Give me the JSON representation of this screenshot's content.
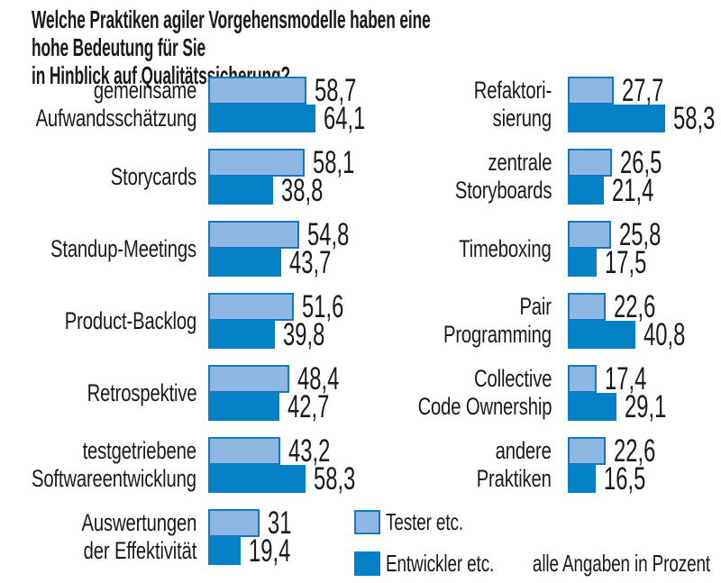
{
  "title": "Welche Praktiken agiler Vorgehensmodelle haben eine hohe Bedeutung für Sie\nin Hinblick auf Qualitätssicherung?",
  "legend": {
    "tester_label": "Tester etc.",
    "entwickler_label": "Entwickler etc."
  },
  "footnote": "alle Angaben in Prozent",
  "colors": {
    "tester_fill": "#8fb7e3",
    "tester_border": "#1478be",
    "entwickler_fill": "#0481c6",
    "text": "#1a1a1a"
  },
  "chart_data": {
    "type": "bar",
    "orientation": "horizontal",
    "unit": "percent",
    "title": "Welche Praktiken agiler Vorgehensmodelle haben eine hohe Bedeutung für Sie in Hinblick auf Qualitätssicherung?",
    "series_names": [
      "Tester etc.",
      "Entwickler etc."
    ],
    "xlim": [
      0,
      70
    ],
    "grid": false,
    "legend_position": "bottom",
    "columns": [
      {
        "rows": [
          {
            "label": "gemeinsame Aufwandsschätzung",
            "label_lines": [
              "gemeinsame",
              "Aufwandsschätzung"
            ],
            "tester": 58.7,
            "entwickler": 64.1,
            "tester_display": "58,7",
            "entwickler_display": "64,1"
          },
          {
            "label": "Storycards",
            "label_lines": [
              "Storycards"
            ],
            "tester": 58.1,
            "entwickler": 38.8,
            "tester_display": "58,1",
            "entwickler_display": "38,8"
          },
          {
            "label": "Standup-Meetings",
            "label_lines": [
              "Standup-Meetings"
            ],
            "tester": 54.8,
            "entwickler": 43.7,
            "tester_display": "54,8",
            "entwickler_display": "43,7"
          },
          {
            "label": "Product-Backlog",
            "label_lines": [
              "Product-Backlog"
            ],
            "tester": 51.6,
            "entwickler": 39.8,
            "tester_display": "51,6",
            "entwickler_display": "39,8"
          },
          {
            "label": "Retrospektive",
            "label_lines": [
              "Retrospektive"
            ],
            "tester": 48.4,
            "entwickler": 42.7,
            "tester_display": "48,4",
            "entwickler_display": "42,7"
          },
          {
            "label": "testgetriebene Softwareentwicklung",
            "label_lines": [
              "testgetriebene",
              "Softwareentwicklung"
            ],
            "tester": 43.2,
            "entwickler": 58.3,
            "tester_display": "43,2",
            "entwickler_display": "58,3"
          },
          {
            "label": "Auswertungen der Effektivität",
            "label_lines": [
              "Auswertungen",
              "der Effektivität"
            ],
            "tester": 31,
            "entwickler": 19.4,
            "tester_display": "31",
            "entwickler_display": "19,4"
          }
        ]
      },
      {
        "rows": [
          {
            "label": "Refaktorisierung",
            "label_lines": [
              "Refaktori-",
              "sierung"
            ],
            "tester": 27.7,
            "entwickler": 58.3,
            "tester_display": "27,7",
            "entwickler_display": "58,3"
          },
          {
            "label": "zentrale Storyboards",
            "label_lines": [
              "zentrale",
              "Storyboards"
            ],
            "tester": 26.5,
            "entwickler": 21.4,
            "tester_display": "26,5",
            "entwickler_display": "21,4"
          },
          {
            "label": "Timeboxing",
            "label_lines": [
              "Timeboxing"
            ],
            "tester": 25.8,
            "entwickler": 17.5,
            "tester_display": "25,8",
            "entwickler_display": "17,5"
          },
          {
            "label": "Pair Programming",
            "label_lines": [
              "Pair",
              "Programming"
            ],
            "tester": 22.6,
            "entwickler": 40.8,
            "tester_display": "22,6",
            "entwickler_display": "40,8"
          },
          {
            "label": "Collective Code Ownership",
            "label_lines": [
              "Collective",
              "Code Ownership"
            ],
            "tester": 17.4,
            "entwickler": 29.1,
            "tester_display": "17,4",
            "entwickler_display": "29,1"
          },
          {
            "label": "andere Praktiken",
            "label_lines": [
              "andere",
              "Praktiken"
            ],
            "tester": 22.6,
            "entwickler": 16.5,
            "tester_display": "22,6",
            "entwickler_display": "16,5"
          }
        ]
      }
    ]
  }
}
